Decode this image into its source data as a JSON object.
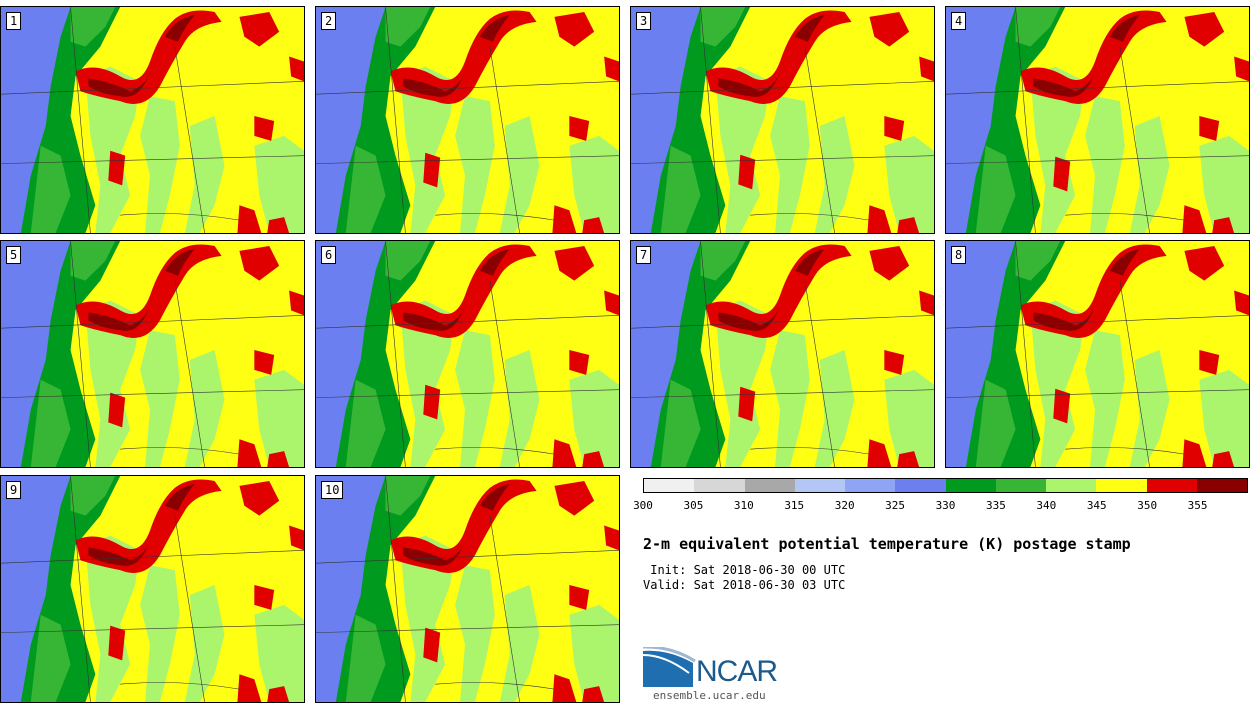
{
  "panels": [
    {
      "label": "1"
    },
    {
      "label": "2"
    },
    {
      "label": "3"
    },
    {
      "label": "4"
    },
    {
      "label": "5"
    },
    {
      "label": "6"
    },
    {
      "label": "7"
    },
    {
      "label": "8"
    },
    {
      "label": "9"
    },
    {
      "label": "10"
    }
  ],
  "colorbar": {
    "colors": [
      "#f0f0f0",
      "#d7d7d7",
      "#a8a8a8",
      "#b3c7f7",
      "#8ea4f5",
      "#6b7ff0",
      "#009a1f",
      "#37b636",
      "#abf56c",
      "#ffff14",
      "#e00000",
      "#8a0000"
    ],
    "ticks": [
      "300",
      "305",
      "310",
      "315",
      "320",
      "325",
      "330",
      "335",
      "340",
      "345",
      "350",
      "355"
    ]
  },
  "title": "2-m equivalent potential temperature (K) postage stamp",
  "init": " Init: Sat 2018-06-30 00 UTC",
  "valid": "Valid: Sat 2018-06-30 03 UTC",
  "logo": {
    "text": "NCAR",
    "site": "ensemble.ucar.edu"
  },
  "colors": {
    "blue": "#6b7ff0",
    "dkgreen": "#009a1f",
    "green": "#37b636",
    "ltgreen": "#abf56c",
    "yellow": "#ffff14",
    "red": "#e00000",
    "dkred": "#8a0000"
  }
}
